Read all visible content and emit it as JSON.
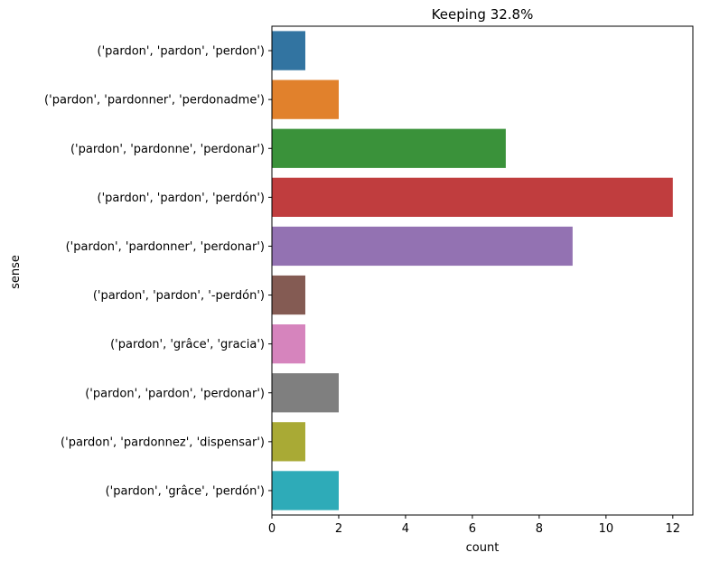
{
  "chart_data": {
    "type": "bar",
    "orientation": "horizontal",
    "title": "Keeping 32.8%",
    "xlabel": "count",
    "ylabel": "sense",
    "xlim": [
      0,
      12.6
    ],
    "xticks": [
      0,
      2,
      4,
      6,
      8,
      10,
      12
    ],
    "grid": false,
    "categories": [
      "('pardon', 'pardon', 'perdon')",
      "('pardon', 'pardonner', 'perdonadme')",
      "('pardon', 'pardonne', 'perdonar')",
      "('pardon', 'pardon', 'perdón')",
      "('pardon', 'pardonner', 'perdonar')",
      "('pardon', 'pardon', '-perdón')",
      "('pardon', 'grâce', 'gracia')",
      "('pardon', 'pardon', 'perdonar')",
      "('pardon', 'pardonnez', 'dispensar')",
      "('pardon', 'grâce', 'perdón')"
    ],
    "values": [
      1,
      2,
      7,
      12,
      9,
      1,
      1,
      2,
      1,
      2
    ],
    "colors": [
      "#3274a1",
      "#e1812c",
      "#3a923a",
      "#c03d3e",
      "#9372b2",
      "#845b53",
      "#d684bd",
      "#7f7f7f",
      "#a9aa35",
      "#2eabb8"
    ]
  }
}
